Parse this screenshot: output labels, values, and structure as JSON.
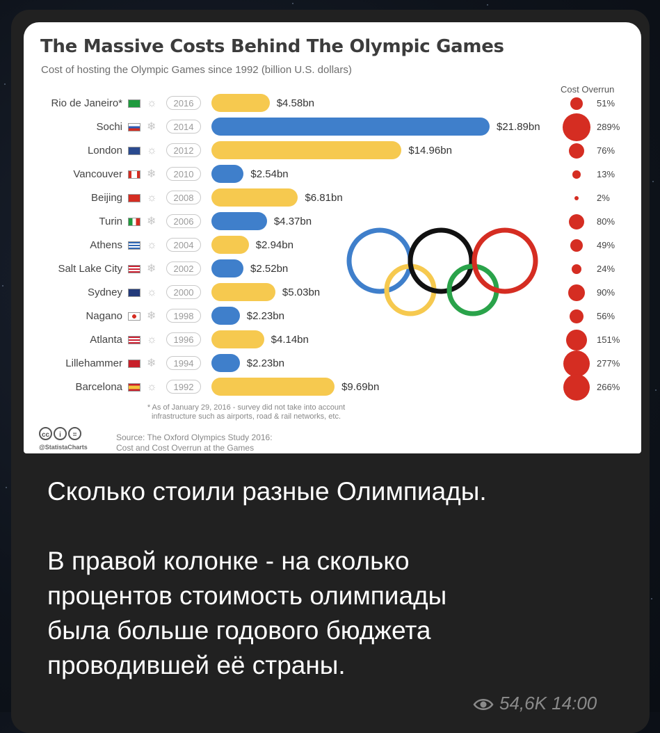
{
  "card": {
    "title": "The Massive Costs Behind The Olympic Games",
    "subtitle": "Cost of hosting the Olympic Games since 1992 (billion U.S. dollars)",
    "overrun_header": "Cost Overrun",
    "footnote_line1": "* As of January 29, 2016 - survey did not take into account",
    "footnote_line2": "infrastructure such as airports, road & rail networks, etc.",
    "source_line1": "Source: The Oxford Olympics Study 2016:",
    "source_line2": "Cost and Cost Overrun at the Games",
    "handle": "@StatistaCharts"
  },
  "chart_data": {
    "type": "bar",
    "title": "The Massive Costs Behind The Olympic Games",
    "subtitle": "Cost of hosting the Olympic Games since 1992 (billion U.S. dollars)",
    "rows": [
      {
        "city": "Rio de Janeiro*",
        "year": "2016",
        "season": "summer",
        "value": 4.58,
        "label": "$4.58bn",
        "overrun": 51,
        "overrun_label": "51%",
        "flag": "brazil"
      },
      {
        "city": "Sochi",
        "year": "2014",
        "season": "winter",
        "value": 21.89,
        "label": "$21.89bn",
        "overrun": 289,
        "overrun_label": "289%",
        "flag": "russia"
      },
      {
        "city": "London",
        "year": "2012",
        "season": "summer",
        "value": 14.96,
        "label": "$14.96bn",
        "overrun": 76,
        "overrun_label": "76%",
        "flag": "uk"
      },
      {
        "city": "Vancouver",
        "year": "2010",
        "season": "winter",
        "value": 2.54,
        "label": "$2.54bn",
        "overrun": 13,
        "overrun_label": "13%",
        "flag": "canada"
      },
      {
        "city": "Beijing",
        "year": "2008",
        "season": "summer",
        "value": 6.81,
        "label": "$6.81bn",
        "overrun": 2,
        "overrun_label": "2%",
        "flag": "china"
      },
      {
        "city": "Turin",
        "year": "2006",
        "season": "winter",
        "value": 4.37,
        "label": "$4.37bn",
        "overrun": 80,
        "overrun_label": "80%",
        "flag": "italy"
      },
      {
        "city": "Athens",
        "year": "2004",
        "season": "summer",
        "value": 2.94,
        "label": "$2.94bn",
        "overrun": 49,
        "overrun_label": "49%",
        "flag": "greece"
      },
      {
        "city": "Salt Lake City",
        "year": "2002",
        "season": "winter",
        "value": 2.52,
        "label": "$2.52bn",
        "overrun": 24,
        "overrun_label": "24%",
        "flag": "usa"
      },
      {
        "city": "Sydney",
        "year": "2000",
        "season": "summer",
        "value": 5.03,
        "label": "$5.03bn",
        "overrun": 90,
        "overrun_label": "90%",
        "flag": "australia"
      },
      {
        "city": "Nagano",
        "year": "1998",
        "season": "winter",
        "value": 2.23,
        "label": "$2.23bn",
        "overrun": 56,
        "overrun_label": "56%",
        "flag": "japan"
      },
      {
        "city": "Atlanta",
        "year": "1996",
        "season": "summer",
        "value": 4.14,
        "label": "$4.14bn",
        "overrun": 151,
        "overrun_label": "151%",
        "flag": "usa"
      },
      {
        "city": "Lillehammer",
        "year": "1994",
        "season": "winter",
        "value": 2.23,
        "label": "$2.23bn",
        "overrun": 277,
        "overrun_label": "277%",
        "flag": "norway"
      },
      {
        "city": "Barcelona",
        "year": "1992",
        "season": "summer",
        "value": 9.69,
        "label": "$9.69bn",
        "overrun": 266,
        "overrun_label": "266%",
        "flag": "spain"
      }
    ],
    "colors": {
      "summer": "#f6c94f",
      "winter": "#3f7fcb",
      "overrun": "#d52d22"
    }
  },
  "message": {
    "line1": "Сколько стоили разные Олимпиады.",
    "line2": "В правой колонке - на сколько",
    "line3": "процентов стоимость олимпиады",
    "line4": "была больше годового бюджета",
    "line5": "проводившей её страны."
  },
  "meta": {
    "views": "54,6K",
    "time": "14:00",
    "icon": "eye-icon"
  }
}
